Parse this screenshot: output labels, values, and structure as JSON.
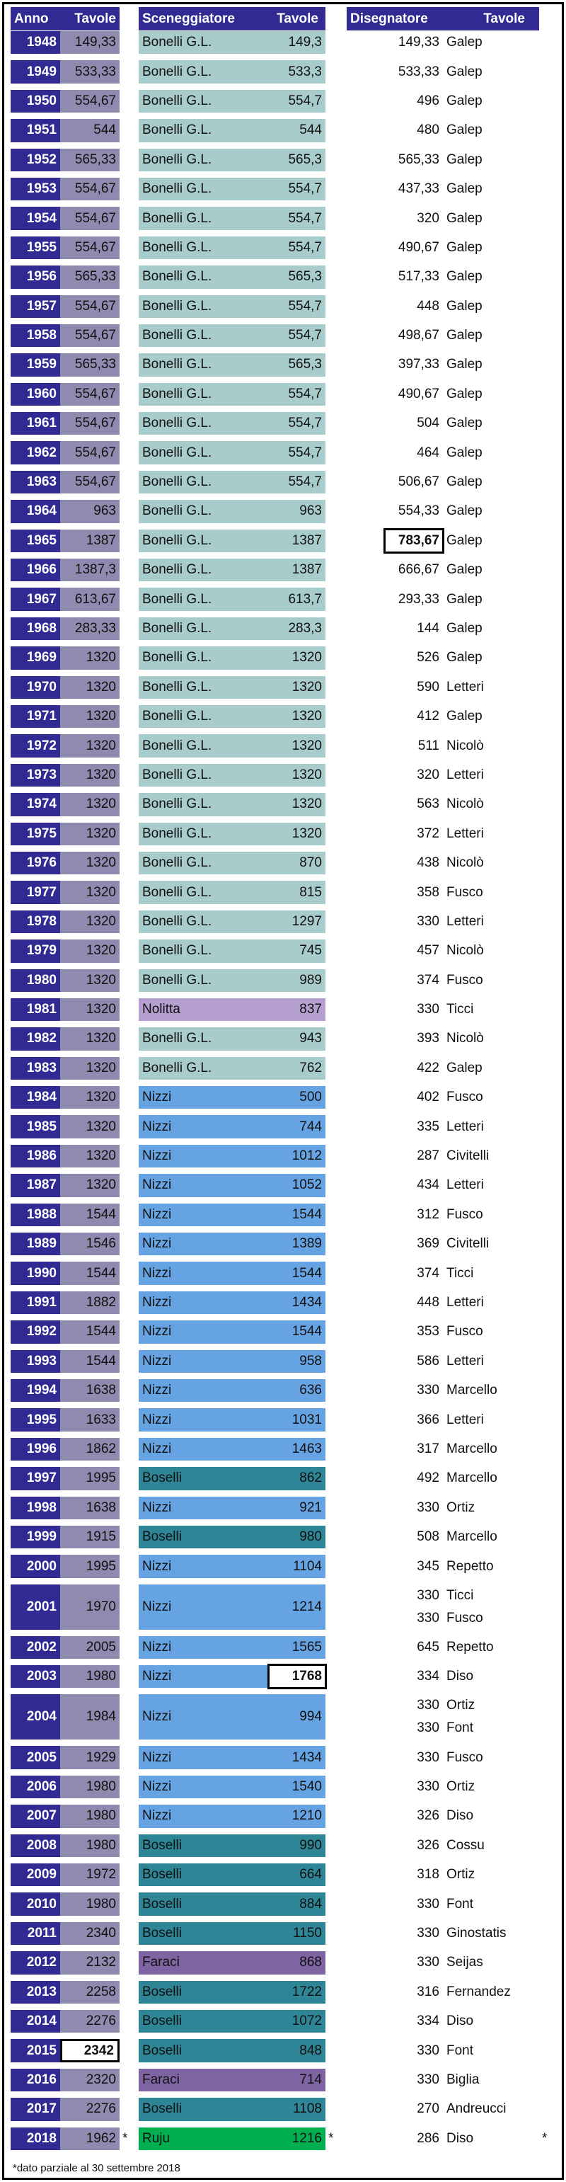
{
  "headers": {
    "anno": "Anno",
    "tavole": "Tavole",
    "sceneggiatore": "Sceneggiatore",
    "tavole_scen": "Tavole",
    "disegnatore": "Disegnatore",
    "tavole_dis": "Tavole"
  },
  "footnote": "*dato parziale al 30 settembre 2018",
  "star_symbol": "*",
  "colors": {
    "header": "#312a92",
    "total": "#8f8bb0",
    "Bonelli G.L.": "#a8cccc",
    "Galep": "#a8cccc",
    "Nizzi": "#66a3e3",
    "Nicolò": "#66a3e3",
    "Boselli": "#2e8596",
    "Fusco": "#2e8596",
    "Letteri": "#b49fd0",
    "Nolitta": "#b49fd0",
    "Ticci": "#c7d9a0",
    "Civitelli": "#de9590",
    "Marcello": "#6e8596",
    "Ortiz": "#7e64a3",
    "Faraci": "#7e64a3",
    "Repetto": "#f8bb8e",
    "Diso": "#0870c0",
    "Font": "#9bbb59",
    "Cossu": "#e36c0a",
    "Ginostatis": "#00b050",
    "Ruju": "#00b050",
    "Seijas": "#7030a0",
    "Fernandez": "#ffc000",
    "Biglia": "#948a54",
    "Andreucci": "#e35b5b"
  },
  "rows": [
    {
      "year": "1948",
      "total": "149,33",
      "scen": {
        "name": "Bonelli G.L.",
        "value": "149,3"
      },
      "dis": [
        {
          "name": "Galep",
          "value": "149,33"
        }
      ]
    },
    {
      "year": "1949",
      "total": "533,33",
      "scen": {
        "name": "Bonelli G.L.",
        "value": "533,3"
      },
      "dis": [
        {
          "name": "Galep",
          "value": "533,33"
        }
      ]
    },
    {
      "year": "1950",
      "total": "554,67",
      "scen": {
        "name": "Bonelli G.L.",
        "value": "554,7"
      },
      "dis": [
        {
          "name": "Galep",
          "value": "496"
        }
      ]
    },
    {
      "year": "1951",
      "total": "544",
      "scen": {
        "name": "Bonelli G.L.",
        "value": "544"
      },
      "dis": [
        {
          "name": "Galep",
          "value": "480"
        }
      ]
    },
    {
      "year": "1952",
      "total": "565,33",
      "scen": {
        "name": "Bonelli G.L.",
        "value": "565,3"
      },
      "dis": [
        {
          "name": "Galep",
          "value": "565,33"
        }
      ]
    },
    {
      "year": "1953",
      "total": "554,67",
      "scen": {
        "name": "Bonelli G.L.",
        "value": "554,7"
      },
      "dis": [
        {
          "name": "Galep",
          "value": "437,33"
        }
      ]
    },
    {
      "year": "1954",
      "total": "554,67",
      "scen": {
        "name": "Bonelli G.L.",
        "value": "554,7"
      },
      "dis": [
        {
          "name": "Galep",
          "value": "320"
        }
      ]
    },
    {
      "year": "1955",
      "total": "554,67",
      "scen": {
        "name": "Bonelli G.L.",
        "value": "554,7"
      },
      "dis": [
        {
          "name": "Galep",
          "value": "490,67"
        }
      ]
    },
    {
      "year": "1956",
      "total": "565,33",
      "scen": {
        "name": "Bonelli G.L.",
        "value": "565,3"
      },
      "dis": [
        {
          "name": "Galep",
          "value": "517,33"
        }
      ]
    },
    {
      "year": "1957",
      "total": "554,67",
      "scen": {
        "name": "Bonelli G.L.",
        "value": "554,7"
      },
      "dis": [
        {
          "name": "Galep",
          "value": "448"
        }
      ]
    },
    {
      "year": "1958",
      "total": "554,67",
      "scen": {
        "name": "Bonelli G.L.",
        "value": "554,7"
      },
      "dis": [
        {
          "name": "Galep",
          "value": "498,67"
        }
      ]
    },
    {
      "year": "1959",
      "total": "565,33",
      "scen": {
        "name": "Bonelli G.L.",
        "value": "565,3"
      },
      "dis": [
        {
          "name": "Galep",
          "value": "397,33"
        }
      ]
    },
    {
      "year": "1960",
      "total": "554,67",
      "scen": {
        "name": "Bonelli G.L.",
        "value": "554,7"
      },
      "dis": [
        {
          "name": "Galep",
          "value": "490,67"
        }
      ]
    },
    {
      "year": "1961",
      "total": "554,67",
      "scen": {
        "name": "Bonelli G.L.",
        "value": "554,7"
      },
      "dis": [
        {
          "name": "Galep",
          "value": "504"
        }
      ]
    },
    {
      "year": "1962",
      "total": "554,67",
      "scen": {
        "name": "Bonelli G.L.",
        "value": "554,7"
      },
      "dis": [
        {
          "name": "Galep",
          "value": "464"
        }
      ]
    },
    {
      "year": "1963",
      "total": "554,67",
      "scen": {
        "name": "Bonelli G.L.",
        "value": "554,7"
      },
      "dis": [
        {
          "name": "Galep",
          "value": "506,67"
        }
      ]
    },
    {
      "year": "1964",
      "total": "963",
      "scen": {
        "name": "Bonelli G.L.",
        "value": "963"
      },
      "dis": [
        {
          "name": "Galep",
          "value": "554,33"
        }
      ]
    },
    {
      "year": "1965",
      "total": "1387",
      "scen": {
        "name": "Bonelli G.L.",
        "value": "1387"
      },
      "dis": [
        {
          "name": "Galep",
          "value": "783,67",
          "highlight": true
        }
      ]
    },
    {
      "year": "1966",
      "total": "1387,3",
      "scen": {
        "name": "Bonelli G.L.",
        "value": "1387"
      },
      "dis": [
        {
          "name": "Galep",
          "value": "666,67"
        }
      ]
    },
    {
      "year": "1967",
      "total": "613,67",
      "scen": {
        "name": "Bonelli G.L.",
        "value": "613,7"
      },
      "dis": [
        {
          "name": "Galep",
          "value": "293,33"
        }
      ]
    },
    {
      "year": "1968",
      "total": "283,33",
      "scen": {
        "name": "Bonelli G.L.",
        "value": "283,3"
      },
      "dis": [
        {
          "name": "Galep",
          "value": "144"
        }
      ]
    },
    {
      "year": "1969",
      "total": "1320",
      "scen": {
        "name": "Bonelli G.L.",
        "value": "1320"
      },
      "dis": [
        {
          "name": "Galep",
          "value": "526"
        }
      ]
    },
    {
      "year": "1970",
      "total": "1320",
      "scen": {
        "name": "Bonelli G.L.",
        "value": "1320"
      },
      "dis": [
        {
          "name": "Letteri",
          "value": "590"
        }
      ]
    },
    {
      "year": "1971",
      "total": "1320",
      "scen": {
        "name": "Bonelli G.L.",
        "value": "1320"
      },
      "dis": [
        {
          "name": "Galep",
          "value": "412"
        }
      ]
    },
    {
      "year": "1972",
      "total": "1320",
      "scen": {
        "name": "Bonelli G.L.",
        "value": "1320"
      },
      "dis": [
        {
          "name": "Nicolò",
          "value": "511"
        }
      ]
    },
    {
      "year": "1973",
      "total": "1320",
      "scen": {
        "name": "Bonelli G.L.",
        "value": "1320"
      },
      "dis": [
        {
          "name": "Letteri",
          "value": "320"
        }
      ]
    },
    {
      "year": "1974",
      "total": "1320",
      "scen": {
        "name": "Bonelli G.L.",
        "value": "1320"
      },
      "dis": [
        {
          "name": "Nicolò",
          "value": "563"
        }
      ]
    },
    {
      "year": "1975",
      "total": "1320",
      "scen": {
        "name": "Bonelli G.L.",
        "value": "1320"
      },
      "dis": [
        {
          "name": "Letteri",
          "value": "372"
        }
      ]
    },
    {
      "year": "1976",
      "total": "1320",
      "scen": {
        "name": "Bonelli G.L.",
        "value": "870"
      },
      "dis": [
        {
          "name": "Nicolò",
          "value": "438"
        }
      ]
    },
    {
      "year": "1977",
      "total": "1320",
      "scen": {
        "name": "Bonelli G.L.",
        "value": "815"
      },
      "dis": [
        {
          "name": "Fusco",
          "value": "358"
        }
      ]
    },
    {
      "year": "1978",
      "total": "1320",
      "scen": {
        "name": "Bonelli G.L.",
        "value": "1297"
      },
      "dis": [
        {
          "name": "Letteri",
          "value": "330"
        }
      ]
    },
    {
      "year": "1979",
      "total": "1320",
      "scen": {
        "name": "Bonelli G.L.",
        "value": "745"
      },
      "dis": [
        {
          "name": "Nicolò",
          "value": "457"
        }
      ]
    },
    {
      "year": "1980",
      "total": "1320",
      "scen": {
        "name": "Bonelli G.L.",
        "value": "989"
      },
      "dis": [
        {
          "name": "Fusco",
          "value": "374"
        }
      ]
    },
    {
      "year": "1981",
      "total": "1320",
      "scen": {
        "name": "Nolitta",
        "value": "837"
      },
      "dis": [
        {
          "name": "Ticci",
          "value": "330"
        }
      ]
    },
    {
      "year": "1982",
      "total": "1320",
      "scen": {
        "name": "Bonelli G.L.",
        "value": "943"
      },
      "dis": [
        {
          "name": "Nicolò",
          "value": "393"
        }
      ]
    },
    {
      "year": "1983",
      "total": "1320",
      "scen": {
        "name": "Bonelli G.L.",
        "value": "762"
      },
      "dis": [
        {
          "name": "Galep",
          "value": "422"
        }
      ]
    },
    {
      "year": "1984",
      "total": "1320",
      "scen": {
        "name": "Nizzi",
        "value": "500"
      },
      "dis": [
        {
          "name": "Fusco",
          "value": "402"
        }
      ]
    },
    {
      "year": "1985",
      "total": "1320",
      "scen": {
        "name": "Nizzi",
        "value": "744"
      },
      "dis": [
        {
          "name": "Letteri",
          "value": "335"
        }
      ]
    },
    {
      "year": "1986",
      "total": "1320",
      "scen": {
        "name": "Nizzi",
        "value": "1012"
      },
      "dis": [
        {
          "name": "Civitelli",
          "value": "287"
        }
      ]
    },
    {
      "year": "1987",
      "total": "1320",
      "scen": {
        "name": "Nizzi",
        "value": "1052"
      },
      "dis": [
        {
          "name": "Letteri",
          "value": "434"
        }
      ]
    },
    {
      "year": "1988",
      "total": "1544",
      "scen": {
        "name": "Nizzi",
        "value": "1544"
      },
      "dis": [
        {
          "name": "Fusco",
          "value": "312"
        }
      ]
    },
    {
      "year": "1989",
      "total": "1546",
      "scen": {
        "name": "Nizzi",
        "value": "1389"
      },
      "dis": [
        {
          "name": "Civitelli",
          "value": "369"
        }
      ]
    },
    {
      "year": "1990",
      "total": "1544",
      "scen": {
        "name": "Nizzi",
        "value": "1544"
      },
      "dis": [
        {
          "name": "Ticci",
          "value": "374"
        }
      ]
    },
    {
      "year": "1991",
      "total": "1882",
      "scen": {
        "name": "Nizzi",
        "value": "1434"
      },
      "dis": [
        {
          "name": "Letteri",
          "value": "448"
        }
      ]
    },
    {
      "year": "1992",
      "total": "1544",
      "scen": {
        "name": "Nizzi",
        "value": "1544"
      },
      "dis": [
        {
          "name": "Fusco",
          "value": "353"
        }
      ]
    },
    {
      "year": "1993",
      "total": "1544",
      "scen": {
        "name": "Nizzi",
        "value": "958"
      },
      "dis": [
        {
          "name": "Letteri",
          "value": "586"
        }
      ]
    },
    {
      "year": "1994",
      "total": "1638",
      "scen": {
        "name": "Nizzi",
        "value": "636"
      },
      "dis": [
        {
          "name": "Marcello",
          "value": "330"
        }
      ]
    },
    {
      "year": "1995",
      "total": "1633",
      "scen": {
        "name": "Nizzi",
        "value": "1031"
      },
      "dis": [
        {
          "name": "Letteri",
          "value": "366"
        }
      ]
    },
    {
      "year": "1996",
      "total": "1862",
      "scen": {
        "name": "Nizzi",
        "value": "1463"
      },
      "dis": [
        {
          "name": "Marcello",
          "value": "317"
        }
      ]
    },
    {
      "year": "1997",
      "total": "1995",
      "scen": {
        "name": "Boselli",
        "value": "862"
      },
      "dis": [
        {
          "name": "Marcello",
          "value": "492"
        }
      ]
    },
    {
      "year": "1998",
      "total": "1638",
      "scen": {
        "name": "Nizzi",
        "value": "921"
      },
      "dis": [
        {
          "name": "Ortiz",
          "value": "330"
        }
      ]
    },
    {
      "year": "1999",
      "total": "1915",
      "scen": {
        "name": "Boselli",
        "value": "980"
      },
      "dis": [
        {
          "name": "Marcello",
          "value": "508"
        }
      ]
    },
    {
      "year": "2000",
      "total": "1995",
      "scen": {
        "name": "Nizzi",
        "value": "1104"
      },
      "dis": [
        {
          "name": "Repetto",
          "value": "345"
        }
      ]
    },
    {
      "year": "2001",
      "total": "1970",
      "scen": {
        "name": "Nizzi",
        "value": "1214"
      },
      "dis": [
        {
          "name": "Ticci",
          "value": "330"
        },
        {
          "name": "Fusco",
          "value": "330"
        }
      ]
    },
    {
      "year": "2002",
      "total": "2005",
      "scen": {
        "name": "Nizzi",
        "value": "1565"
      },
      "dis": [
        {
          "name": "Repetto",
          "value": "645"
        }
      ]
    },
    {
      "year": "2003",
      "total": "1980",
      "scen": {
        "name": "Nizzi",
        "value": "1768",
        "highlight": true
      },
      "dis": [
        {
          "name": "Diso",
          "value": "334"
        }
      ]
    },
    {
      "year": "2004",
      "total": "1984",
      "scen": {
        "name": "Nizzi",
        "value": "994"
      },
      "dis": [
        {
          "name": "Ortiz",
          "value": "330"
        },
        {
          "name": "Font",
          "value": "330"
        }
      ]
    },
    {
      "year": "2005",
      "total": "1929",
      "scen": {
        "name": "Nizzi",
        "value": "1434"
      },
      "dis": [
        {
          "name": "Fusco",
          "value": "330"
        }
      ]
    },
    {
      "year": "2006",
      "total": "1980",
      "scen": {
        "name": "Nizzi",
        "value": "1540"
      },
      "dis": [
        {
          "name": "Ortiz",
          "value": "330"
        }
      ]
    },
    {
      "year": "2007",
      "total": "1980",
      "scen": {
        "name": "Nizzi",
        "value": "1210"
      },
      "dis": [
        {
          "name": "Diso",
          "value": "326"
        }
      ]
    },
    {
      "year": "2008",
      "total": "1980",
      "scen": {
        "name": "Boselli",
        "value": "990"
      },
      "dis": [
        {
          "name": "Cossu",
          "value": "326"
        }
      ]
    },
    {
      "year": "2009",
      "total": "1972",
      "scen": {
        "name": "Boselli",
        "value": "664"
      },
      "dis": [
        {
          "name": "Ortiz",
          "value": "318"
        }
      ]
    },
    {
      "year": "2010",
      "total": "1980",
      "scen": {
        "name": "Boselli",
        "value": "884"
      },
      "dis": [
        {
          "name": "Font",
          "value": "330"
        }
      ]
    },
    {
      "year": "2011",
      "total": "2340",
      "scen": {
        "name": "Boselli",
        "value": "1150"
      },
      "dis": [
        {
          "name": "Ginostatis",
          "value": "330"
        }
      ]
    },
    {
      "year": "2012",
      "total": "2132",
      "scen": {
        "name": "Faraci",
        "value": "868"
      },
      "dis": [
        {
          "name": "Seijas",
          "value": "330"
        }
      ]
    },
    {
      "year": "2013",
      "total": "2258",
      "scen": {
        "name": "Boselli",
        "value": "1722"
      },
      "dis": [
        {
          "name": "Fernandez",
          "value": "316"
        }
      ]
    },
    {
      "year": "2014",
      "total": "2276",
      "scen": {
        "name": "Boselli",
        "value": "1072"
      },
      "dis": [
        {
          "name": "Diso",
          "value": "334"
        }
      ]
    },
    {
      "year": "2015",
      "total": "2342",
      "total_highlight": true,
      "scen": {
        "name": "Boselli",
        "value": "848"
      },
      "dis": [
        {
          "name": "Font",
          "value": "330"
        }
      ]
    },
    {
      "year": "2016",
      "total": "2320",
      "scen": {
        "name": "Faraci",
        "value": "714"
      },
      "dis": [
        {
          "name": "Biglia",
          "value": "330"
        }
      ]
    },
    {
      "year": "2017",
      "total": "2276",
      "scen": {
        "name": "Boselli",
        "value": "1108"
      },
      "dis": [
        {
          "name": "Andreucci",
          "value": "270"
        }
      ]
    },
    {
      "year": "2018",
      "total": "1962",
      "partial": true,
      "scen": {
        "name": "Ruju",
        "value": "1216"
      },
      "dis": [
        {
          "name": "Diso",
          "value": "286"
        }
      ]
    }
  ]
}
